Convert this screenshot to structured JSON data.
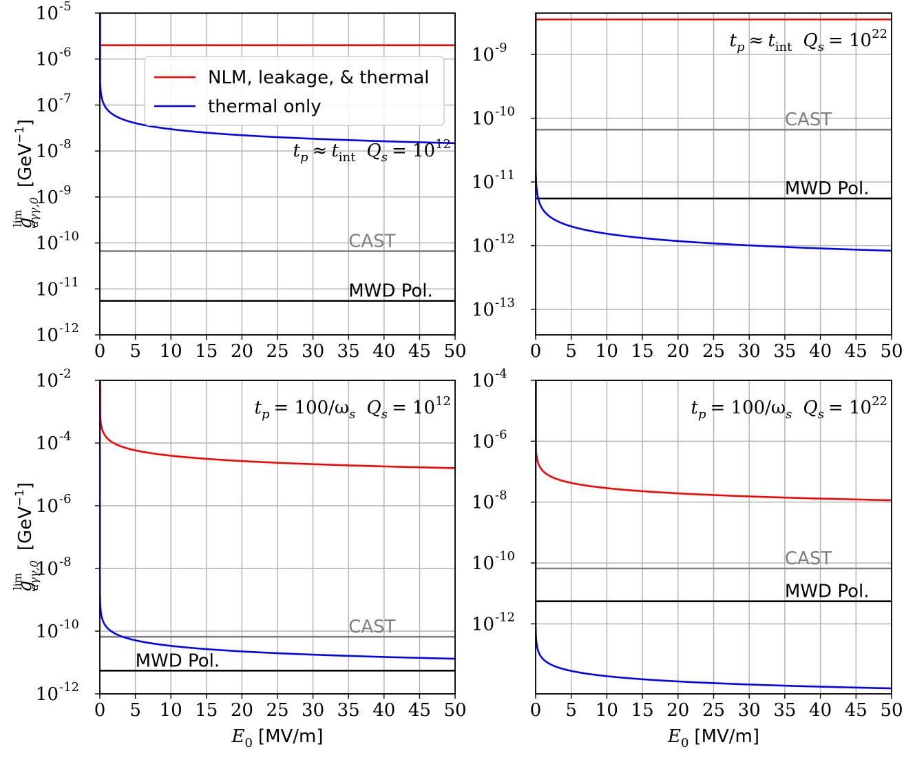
{
  "chart_data": [
    {
      "type": "line",
      "panel": "top-left",
      "annotation": "tp ≈ tint  Qs = 10^12",
      "annotation_parts": {
        "tp": "t",
        "tp_sub": "p",
        "approx": "≈",
        "tint": "t",
        "tint_sub": "int",
        "qs": "Q",
        "qs_sub": "s",
        "eq": "= 10",
        "exp": "12"
      },
      "ylabel": "g_lim aγγ,0 [GeV⁻¹]",
      "xlabel": "",
      "xlim": [
        0,
        50
      ],
      "ylim_log10": [
        -12,
        -5
      ],
      "x_ticks": [
        0,
        5,
        10,
        15,
        20,
        25,
        30,
        35,
        40,
        45,
        50
      ],
      "y_ticks_exp": [
        -12,
        -11,
        -10,
        -9,
        -8,
        -7,
        -6,
        -5
      ],
      "series": [
        {
          "name": "NLM, leakage, & thermal",
          "color": "#ff0000",
          "kind": "const",
          "log10": -5.7
        },
        {
          "name": "thermal only",
          "color": "#0000ff",
          "kind": "curve",
          "k": -6.48,
          "c": -7.83,
          "x0": 0.04
        }
      ],
      "reference_lines": [
        {
          "name": "CAST",
          "color": "#808080",
          "log10": -10.18
        },
        {
          "name": "MWD Pol.",
          "color": "#000000",
          "log10": -11.26
        }
      ],
      "show_legend": true,
      "legend": [
        "NLM, leakage, & thermal",
        "thermal only"
      ],
      "legend_position": "top-right"
    },
    {
      "type": "line",
      "panel": "top-right",
      "annotation": "tp ≈ tint  Qs = 10^22",
      "annotation_parts": {
        "tp": "t",
        "tp_sub": "p",
        "approx": "≈",
        "tint": "t",
        "tint_sub": "int",
        "qs": "Q",
        "qs_sub": "s",
        "eq": "= 10",
        "exp": "22"
      },
      "ylabel": "",
      "xlabel": "",
      "xlim": [
        0,
        50
      ],
      "ylim_log10": [
        -13.4,
        -8.35
      ],
      "x_ticks": [
        0,
        5,
        10,
        15,
        20,
        25,
        30,
        35,
        40,
        45,
        50
      ],
      "y_ticks_exp": [
        -13,
        -12,
        -11,
        -10,
        -9
      ],
      "series": [
        {
          "name": "NLM, leakage, & thermal",
          "color": "#ff0000",
          "kind": "const",
          "log10": -8.45
        },
        {
          "name": "thermal only",
          "color": "#0000ff",
          "kind": "curve",
          "k": -10.78,
          "c": -12.08,
          "x0": 0.02
        }
      ],
      "reference_lines": [
        {
          "name": "CAST",
          "color": "#808080",
          "log10": -10.18
        },
        {
          "name": "MWD Pol.",
          "color": "#000000",
          "log10": -11.26
        }
      ],
      "show_legend": false
    },
    {
      "type": "line",
      "panel": "bottom-left",
      "annotation": "tp = 100/ωs  Qs = 10^12",
      "annotation_parts": {
        "tp": "t",
        "tp_sub": "p",
        "approx": "= 100/ω",
        "omega_sub": "s",
        "qs": "Q",
        "qs_sub": "s",
        "eq": "= 10",
        "exp": "12"
      },
      "ylabel": "g_lim aγγ,0 [GeV⁻¹]",
      "xlabel": "E0 [MV/m]",
      "xlim": [
        0,
        50
      ],
      "ylim_log10": [
        -12,
        -2
      ],
      "x_ticks": [
        0,
        5,
        10,
        15,
        20,
        25,
        30,
        35,
        40,
        45,
        50
      ],
      "y_ticks_exp": [
        -12,
        -10,
        -8,
        -6,
        -4,
        -2
      ],
      "series": [
        {
          "name": "NLM, leakage, & thermal",
          "color": "#ff0000",
          "kind": "curve",
          "k": -3.1,
          "c": -4.8,
          "x0": 0.05
        },
        {
          "name": "thermal only",
          "color": "#0000ff",
          "kind": "curve",
          "k": -8.4,
          "c": -10.88,
          "x0": 0.003
        }
      ],
      "reference_lines": [
        {
          "name": "CAST",
          "color": "#808080",
          "log10": -10.18
        },
        {
          "name": "MWD Pol.",
          "color": "#000000",
          "log10": -11.26
        }
      ],
      "show_legend": false
    },
    {
      "type": "line",
      "panel": "bottom-right",
      "annotation": "tp = 100/ωs  Qs = 10^22",
      "annotation_parts": {
        "tp": "t",
        "tp_sub": "p",
        "approx": "= 100/ω",
        "omega_sub": "s",
        "qs": "Q",
        "qs_sub": "s",
        "eq": "= 10",
        "exp": "22"
      },
      "ylabel": "",
      "xlabel": "E0 [MV/m]",
      "xlim": [
        0,
        50
      ],
      "ylim_log10": [
        -14.3,
        -4
      ],
      "x_ticks": [
        0,
        5,
        10,
        15,
        20,
        25,
        30,
        35,
        40,
        45,
        50
      ],
      "y_ticks_exp": [
        -12,
        -10,
        -8,
        -6,
        -4
      ],
      "series": [
        {
          "name": "NLM, leakage, & thermal",
          "color": "#ff0000",
          "kind": "curve",
          "k": -6.23,
          "c": -7.94,
          "x0": 0.05
        },
        {
          "name": "thermal only",
          "color": "#0000ff",
          "kind": "curve",
          "k": -11.7,
          "c": -14.12,
          "x0": 0.003
        }
      ],
      "reference_lines": [
        {
          "name": "CAST",
          "color": "#808080",
          "log10": -10.18
        },
        {
          "name": "MWD Pol.",
          "color": "#000000",
          "log10": -11.26
        }
      ],
      "show_legend": false
    }
  ],
  "labels": {
    "ylabel_g": "g",
    "ylabel_sup": "lim",
    "ylabel_sub": "aγγ,0",
    "ylabel_unit": "[GeV",
    "ylabel_unit_exp": "−1",
    "ylabel_unit_close": "]",
    "xlabel_e": "E",
    "xlabel_sub": "0",
    "xlabel_unit": "[MV/m]",
    "tick_base": "10",
    "cast": "CAST",
    "mwd": "MWD Pol.",
    "legend_red": "NLM, leakage, & thermal",
    "legend_blue": "thermal only"
  },
  "colors": {
    "red": "#ff0000",
    "blue": "#0000ff",
    "cast": "#808080",
    "mwd": "#000000",
    "grid": "#b0b0b0"
  }
}
